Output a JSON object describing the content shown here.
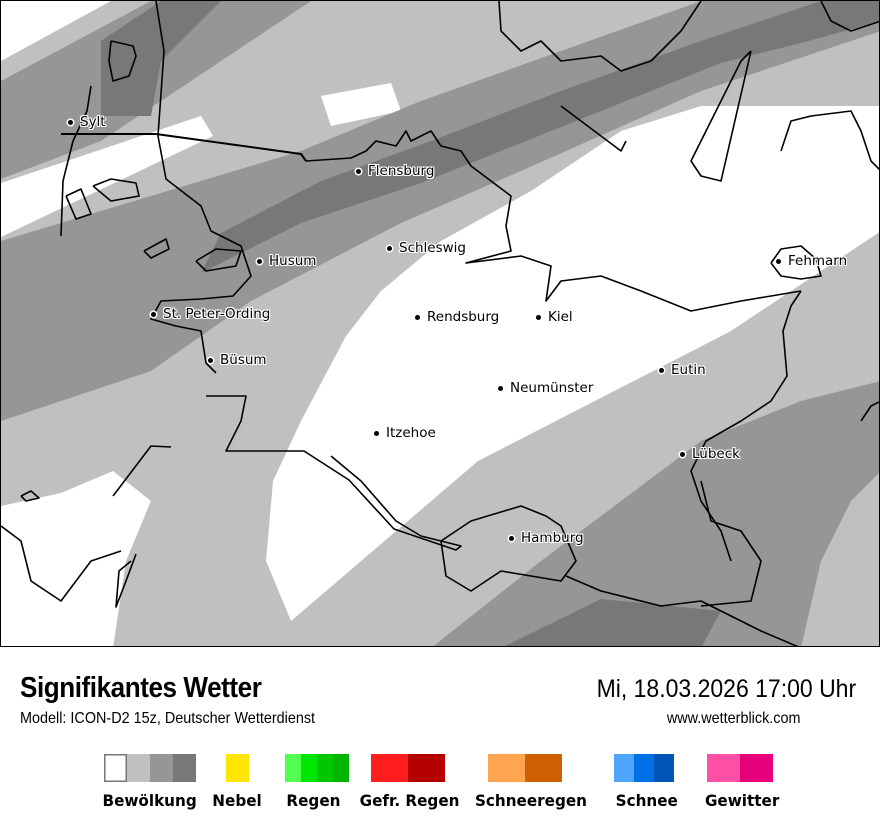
{
  "map": {
    "cloud_colors": {
      "light": "#c0c0c0",
      "medium": "#969696",
      "dark": "#787878"
    },
    "cities": [
      {
        "name": "Sylt"
      },
      {
        "name": "Flensburg"
      },
      {
        "name": "Husum"
      },
      {
        "name": "Schleswig"
      },
      {
        "name": "St. Peter-Ording"
      },
      {
        "name": "Rendsburg"
      },
      {
        "name": "Kiel"
      },
      {
        "name": "Fehmarn"
      },
      {
        "name": "Büsum"
      },
      {
        "name": "Neumünster"
      },
      {
        "name": "Eutin"
      },
      {
        "name": "Itzehoe"
      },
      {
        "name": "Lübeck"
      },
      {
        "name": "Hamburg"
      }
    ]
  },
  "header": {
    "title": "Signifikantes Wetter",
    "subtitle": "Modell: ICON-D2 15z, Deutscher Wetterdienst",
    "datetime": "Mi, 18.03.2026 17:00 Uhr",
    "website": "www.wetterblick.com"
  },
  "legend": [
    {
      "label": "Bewölkung",
      "colors": [
        "#ffffff",
        "#c0c0c0",
        "#969696",
        "#787878"
      ]
    },
    {
      "label": "Nebel",
      "colors": [
        "#ffe600"
      ]
    },
    {
      "label": "Regen",
      "colors": [
        "#50ff50",
        "#00e600",
        "#00c800",
        "#00b400"
      ]
    },
    {
      "label": "Gefr. Regen",
      "colors": [
        "#ff1e1e",
        "#b40000"
      ]
    },
    {
      "label": "Schneeregen",
      "colors": [
        "#ffa54f",
        "#cd6000"
      ]
    },
    {
      "label": "Schnee",
      "colors": [
        "#50a5ff",
        "#0070e6",
        "#0055b4"
      ]
    },
    {
      "label": "Gewitter",
      "colors": [
        "#ff50a5",
        "#e6007a"
      ]
    }
  ]
}
